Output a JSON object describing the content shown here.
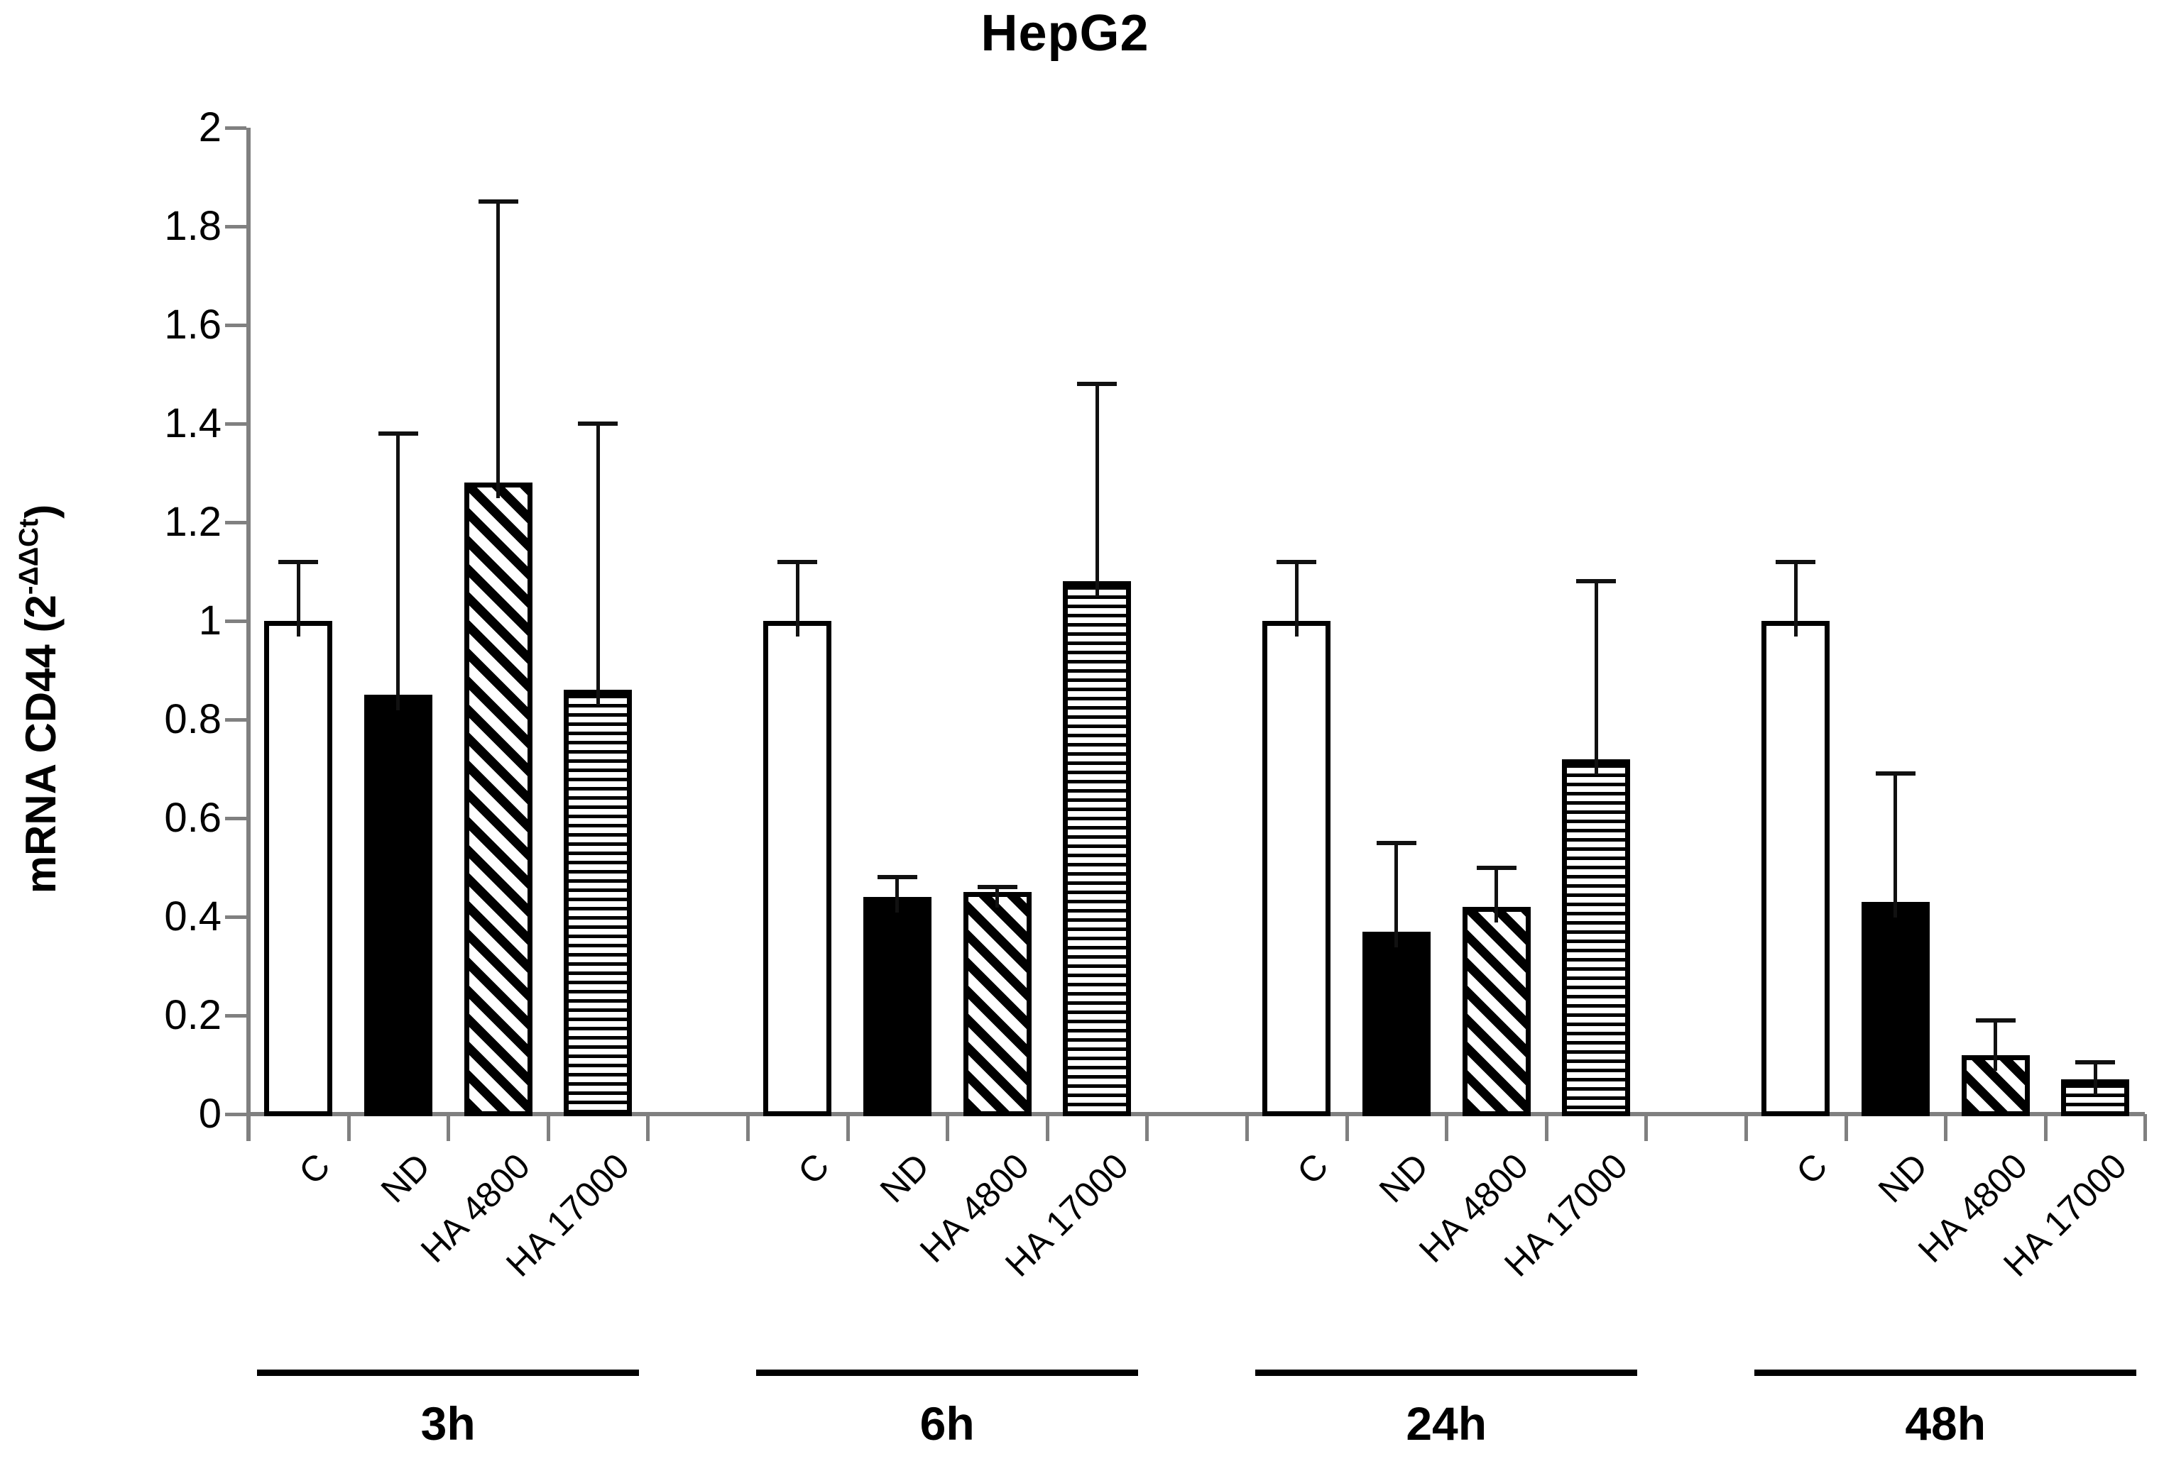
{
  "chart_data": {
    "type": "bar",
    "title": "HepG2",
    "ylabel": {
      "prefix": "mRNA CD44 (2",
      "superscript": "-ΔΔCt",
      "suffix": ")",
      "full": "mRNA CD44 (2^-ΔΔCt)"
    },
    "ylim": [
      0,
      2
    ],
    "ytick_step": 0.2,
    "y_ticks": [
      {
        "label": "2",
        "value": 2.0
      },
      {
        "label": "1.8",
        "value": 1.8
      },
      {
        "label": "1.6",
        "value": 1.6
      },
      {
        "label": "1.4",
        "value": 1.4
      },
      {
        "label": "1.2",
        "value": 1.2
      },
      {
        "label": "1",
        "value": 1.0
      },
      {
        "label": "0.8",
        "value": 0.8
      },
      {
        "label": "0.6",
        "value": 0.6
      },
      {
        "label": "0.4",
        "value": 0.4
      },
      {
        "label": "0.2",
        "value": 0.2
      },
      {
        "label": "0",
        "value": 0.0
      }
    ],
    "categories": [
      "C",
      "ND",
      "HA 4800",
      "HA 17000"
    ],
    "pattern_by_category": {
      "C": "open",
      "ND": "solid",
      "HA 4800": "diagonal-hatch",
      "HA 17000": "horizontal-lines"
    },
    "error_bars": "upper only, absolute values",
    "grid": "off",
    "legend": "none",
    "groups": [
      {
        "label": "3h",
        "bars": [
          {
            "category": "C",
            "value": 1.0,
            "error": 0.12
          },
          {
            "category": "ND",
            "value": 0.85,
            "error": 0.53
          },
          {
            "category": "HA 4800",
            "value": 1.28,
            "error": 0.57
          },
          {
            "category": "HA 17000",
            "value": 0.86,
            "error": 0.54
          }
        ]
      },
      {
        "label": "6h",
        "bars": [
          {
            "category": "C",
            "value": 1.0,
            "error": 0.12
          },
          {
            "category": "ND",
            "value": 0.44,
            "error": 0.04
          },
          {
            "category": "HA 4800",
            "value": 0.45,
            "error": 0.01
          },
          {
            "category": "HA 17000",
            "value": 1.08,
            "error": 0.4
          }
        ]
      },
      {
        "label": "24h",
        "bars": [
          {
            "category": "C",
            "value": 1.0,
            "error": 0.12
          },
          {
            "category": "ND",
            "value": 0.37,
            "error": 0.18
          },
          {
            "category": "HA 4800",
            "value": 0.42,
            "error": 0.08
          },
          {
            "category": "HA 17000",
            "value": 0.72,
            "error": 0.36
          }
        ]
      },
      {
        "label": "48h",
        "bars": [
          {
            "category": "C",
            "value": 1.0,
            "error": 0.12
          },
          {
            "category": "ND",
            "value": 0.43,
            "error": 0.26
          },
          {
            "category": "HA 4800",
            "value": 0.12,
            "error": 0.07
          },
          {
            "category": "HA 17000",
            "value": 0.07,
            "error": 0.035
          }
        ]
      }
    ]
  },
  "colors": {
    "background": "#ffffff",
    "axis": "#808080",
    "bar_border": "#000000",
    "text": "#000000"
  }
}
